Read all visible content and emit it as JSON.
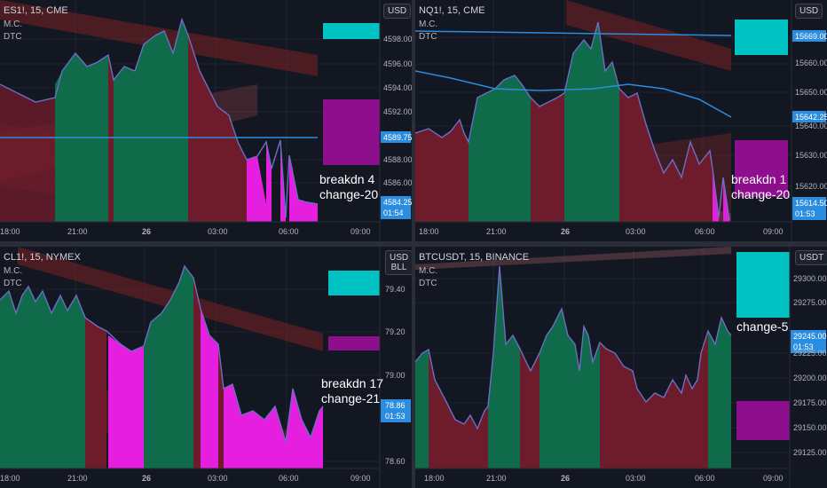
{
  "colors": {
    "bg": "#131722",
    "green": "#0f6b4a",
    "red": "#6e1b2c",
    "magenta": "#e51ee0",
    "teal": "#00c2c2",
    "purple": "#8d0f8d",
    "line": "#6a6fc4",
    "blue": "#2a8de0",
    "grid": "#1f2330",
    "text": "#b2b5be",
    "channel": "#7a2222"
  },
  "panes": [
    {
      "title": "ES1!, 15, CME",
      "ind1": "M.C.",
      "ind2": "DTC",
      "currency": "USD",
      "annotation": [
        "breakdn 4",
        "change-20"
      ],
      "y_ticks": [
        "4598.00",
        "4596.00",
        "4594.00",
        "4592.00",
        "4588.00",
        "4586.00"
      ],
      "price_label": "4589.75",
      "last_price": "4584.25",
      "countdown": "01:54",
      "x_ticks": [
        "18:00",
        "21:00",
        "26",
        "03:00",
        "06:00",
        "09:00"
      ]
    },
    {
      "title": "NQ1!, 15, CME",
      "ind1": "M.C.",
      "ind2": "DTC",
      "currency": "USD",
      "annotation": [
        "breakdn 1",
        "change-20"
      ],
      "y_ticks": [
        "15660.00",
        "15650.00",
        "15640.00",
        "15630.00",
        "15620.00"
      ],
      "price_label": "15669.00",
      "price_label2": "15642.25",
      "last_price": "15614.50",
      "countdown": "01:53",
      "x_ticks": [
        "18:00",
        "21:00",
        "26",
        "03:00",
        "06:00",
        "09:00"
      ]
    },
    {
      "title": "CL1!, 15, NYMEX",
      "ind1": "M.C.",
      "ind2": "DTC",
      "currency": "USD",
      "currency2": "BLL",
      "annotation": [
        "breakdn 17",
        "change-21"
      ],
      "y_ticks": [
        "79.40",
        "79.20",
        "79.00",
        "78.60"
      ],
      "last_price": "78.86",
      "countdown": "01:53",
      "x_ticks": [
        "18:00",
        "21:00",
        "26",
        "03:00",
        "06:00",
        "09:00"
      ]
    },
    {
      "title": "BTCUSDT, 15, BINANCE",
      "ind1": "M.C.",
      "ind2": "DTC",
      "currency": "USDT",
      "annotation": [
        "change-5"
      ],
      "y_ticks": [
        "29300.00",
        "29275.00",
        "29225.00",
        "29200.00",
        "29175.00",
        "29150.00",
        "29125.00"
      ],
      "last_price": "29245.00",
      "countdown": "01:53",
      "x_ticks": [
        "18:00",
        "21:00",
        "26",
        "03:00",
        "06:00",
        "09:00"
      ]
    }
  ]
}
